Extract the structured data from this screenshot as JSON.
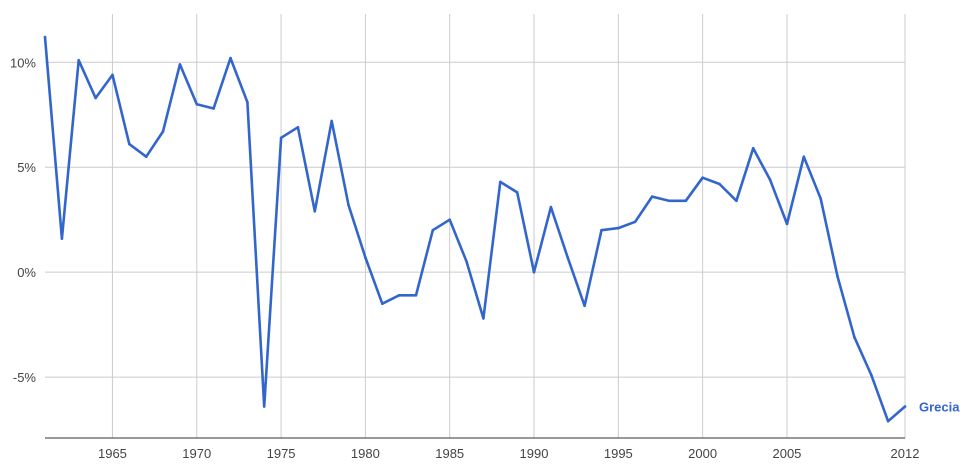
{
  "chart_data": {
    "type": "line",
    "x": [
      1961,
      1962,
      1963,
      1964,
      1965,
      1966,
      1967,
      1968,
      1969,
      1970,
      1971,
      1972,
      1973,
      1974,
      1975,
      1976,
      1977,
      1978,
      1979,
      1980,
      1981,
      1982,
      1983,
      1984,
      1985,
      1986,
      1987,
      1988,
      1989,
      1990,
      1991,
      1992,
      1993,
      1994,
      1995,
      1996,
      1997,
      1998,
      1999,
      2000,
      2001,
      2002,
      2003,
      2004,
      2005,
      2006,
      2007,
      2008,
      2009,
      2010,
      2011,
      2012
    ],
    "series": [
      {
        "name": "Grecia",
        "color": "#3366cc",
        "values": [
          11.2,
          1.6,
          10.1,
          8.3,
          9.4,
          6.1,
          5.5,
          6.7,
          9.9,
          8.0,
          7.8,
          10.2,
          8.1,
          -6.4,
          6.4,
          6.9,
          2.9,
          7.2,
          3.2,
          0.7,
          -1.5,
          -1.1,
          -1.1,
          2.0,
          2.5,
          0.5,
          -2.2,
          4.3,
          3.8,
          0.0,
          3.1,
          0.7,
          -1.6,
          2.0,
          2.1,
          2.4,
          3.6,
          3.4,
          3.4,
          4.5,
          4.2,
          3.4,
          5.9,
          4.4,
          2.3,
          5.5,
          3.5,
          -0.2,
          -3.1,
          -4.9,
          -7.1,
          -6.4
        ]
      }
    ],
    "y_ticks": [
      {
        "value": 10,
        "label": "10%"
      },
      {
        "value": 5,
        "label": "5%"
      },
      {
        "value": 0,
        "label": "0%"
      },
      {
        "value": -5,
        "label": "-5%"
      }
    ],
    "x_ticks": [
      {
        "value": 1965,
        "label": "1965"
      },
      {
        "value": 1970,
        "label": "1970"
      },
      {
        "value": 1975,
        "label": "1975"
      },
      {
        "value": 1980,
        "label": "1980"
      },
      {
        "value": 1985,
        "label": "1985"
      },
      {
        "value": 1990,
        "label": "1990"
      },
      {
        "value": 1995,
        "label": "1995"
      },
      {
        "value": 2000,
        "label": "2000"
      },
      {
        "value": 2005,
        "label": "2005"
      },
      {
        "value": 2012,
        "label": "2012"
      }
    ],
    "xlim": [
      1961,
      2012
    ],
    "ylim": [
      -7.9,
      12.3
    ],
    "grid": true,
    "legend": "inline-right",
    "colors": {
      "line": "#3366cc",
      "grid": "#cccccc",
      "axis": "#333333",
      "text": "#444444"
    }
  }
}
